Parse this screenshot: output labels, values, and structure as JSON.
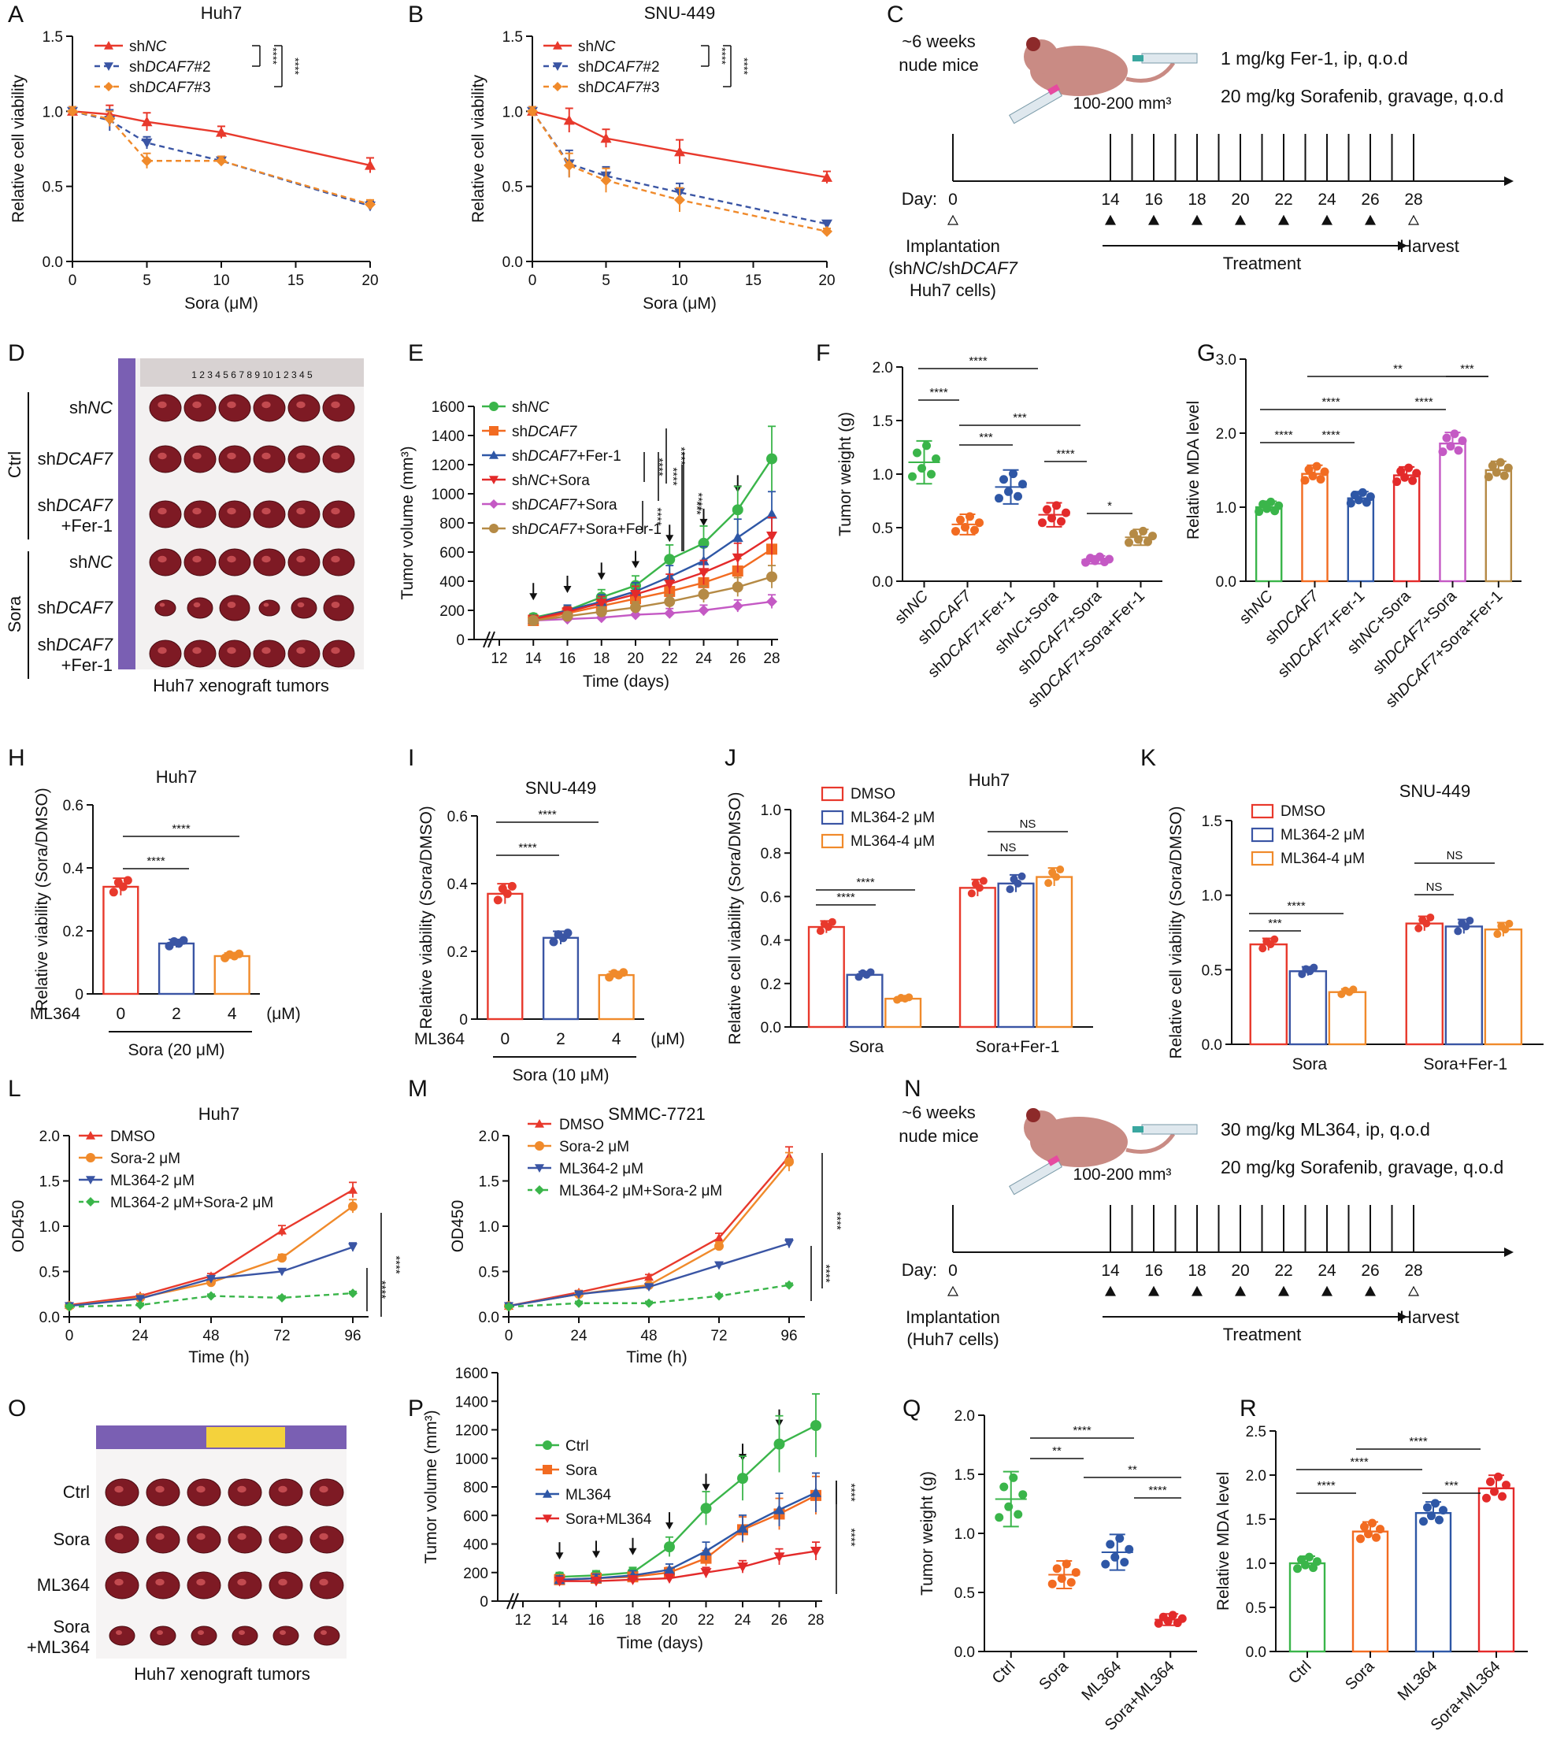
{
  "figure": {
    "panels_letters": [
      "A",
      "B",
      "C",
      "D",
      "E",
      "F",
      "G",
      "H",
      "I",
      "J",
      "K",
      "L",
      "M",
      "N",
      "O",
      "P",
      "Q",
      "R"
    ]
  },
  "chart_data": [
    {
      "id": "A",
      "type": "line",
      "title": "Huh7",
      "xlabel": "Sora (μM)",
      "ylabel": "Relative cell viability",
      "xlim": [
        0,
        20
      ],
      "ylim": [
        0,
        1.5
      ],
      "xticks": [
        0,
        5,
        10,
        15,
        20
      ],
      "yticks": [
        0,
        0.5,
        1.0,
        1.5
      ],
      "x": [
        0,
        2.5,
        5,
        10,
        20
      ],
      "series": [
        {
          "name": "shNC",
          "values": [
            1.0,
            0.98,
            0.93,
            0.86,
            0.64
          ],
          "err": [
            0.03,
            0.06,
            0.06,
            0.04,
            0.05
          ],
          "color": "#e8392c",
          "marker": "triangle-up",
          "dash": false
        },
        {
          "name": "shDCAF7#2",
          "values": [
            1.0,
            0.94,
            0.79,
            0.67,
            0.37
          ],
          "err": [
            0.03,
            0.07,
            0.04,
            0.03,
            0.03
          ],
          "color": "#3a55a4",
          "marker": "triangle-down",
          "dash": true
        },
        {
          "name": "shDCAF7#3",
          "values": [
            1.0,
            0.95,
            0.67,
            0.67,
            0.38
          ],
          "err": [
            0.03,
            0.05,
            0.05,
            0.03,
            0.03
          ],
          "color": "#f08a2b",
          "marker": "diamond",
          "dash": true
        }
      ],
      "legend": [
        "shNC",
        "shDCAF7#2",
        "shDCAF7#3"
      ],
      "annotations": [
        "****",
        "****"
      ]
    },
    {
      "id": "B",
      "type": "line",
      "title": "SNU-449",
      "xlabel": "Sora (μM)",
      "ylabel": "Relative cell viability",
      "xlim": [
        0,
        20
      ],
      "ylim": [
        0,
        1.5
      ],
      "xticks": [
        0,
        5,
        10,
        15,
        20
      ],
      "yticks": [
        0,
        0.5,
        1.0,
        1.5
      ],
      "x": [
        0,
        2.5,
        5,
        10,
        20
      ],
      "series": [
        {
          "name": "shNC",
          "values": [
            1.0,
            0.94,
            0.82,
            0.73,
            0.56
          ],
          "err": [
            0.03,
            0.08,
            0.06,
            0.08,
            0.04
          ],
          "color": "#e8392c",
          "marker": "triangle-up",
          "dash": false
        },
        {
          "name": "shDCAF7#2",
          "values": [
            1.0,
            0.65,
            0.57,
            0.46,
            0.25
          ],
          "err": [
            0.03,
            0.09,
            0.06,
            0.06,
            0.02
          ],
          "color": "#3a55a4",
          "marker": "triangle-down",
          "dash": true
        },
        {
          "name": "shDCAF7#3",
          "values": [
            1.0,
            0.64,
            0.54,
            0.41,
            0.2
          ],
          "err": [
            0.03,
            0.08,
            0.08,
            0.08,
            0.02
          ],
          "color": "#f08a2b",
          "marker": "diamond",
          "dash": true
        }
      ],
      "legend": [
        "shNC",
        "shDCAF7#2",
        "shDCAF7#3"
      ],
      "annotations": [
        "****",
        "****"
      ]
    },
    {
      "id": "E",
      "type": "line",
      "title": "",
      "xlabel": "Time (days)",
      "ylabel": "Tumor volume (mm³)",
      "xlim": [
        12,
        28
      ],
      "ylim": [
        0,
        1600
      ],
      "xticks": [
        12,
        14,
        16,
        18,
        20,
        22,
        24,
        26,
        28
      ],
      "yticks": [
        0,
        200,
        400,
        600,
        800,
        1000,
        1200,
        1400,
        1600
      ],
      "x": [
        14,
        16,
        18,
        20,
        22,
        24,
        26,
        28
      ],
      "series": [
        {
          "name": "shNC",
          "values": [
            150,
            200,
            290,
            370,
            550,
            660,
            890,
            1240
          ],
          "color": "#3ab54a"
        },
        {
          "name": "shDCAF7",
          "values": [
            130,
            180,
            230,
            280,
            330,
            390,
            470,
            620
          ],
          "color": "#f26b21"
        },
        {
          "name": "shDCAF7+Fer-1",
          "values": [
            140,
            200,
            260,
            330,
            430,
            540,
            700,
            860
          ],
          "color": "#2e57a6"
        },
        {
          "name": "shNC+Sora",
          "values": [
            140,
            190,
            250,
            310,
            380,
            460,
            560,
            710
          ],
          "color": "#e32a2a"
        },
        {
          "name": "shDCAF7+Sora",
          "values": [
            130,
            140,
            150,
            170,
            180,
            200,
            230,
            260
          ],
          "color": "#c459c4"
        },
        {
          "name": "shDCAF7+Sora+Fer-1",
          "values": [
            130,
            160,
            190,
            220,
            260,
            310,
            360,
            430
          ],
          "color": "#b58a45"
        }
      ],
      "arrow_days": [
        14,
        16,
        18,
        20,
        22,
        24,
        26
      ],
      "annotations": [
        "****",
        "****",
        "****",
        "****",
        "****",
        "***"
      ]
    },
    {
      "id": "F",
      "type": "scatter",
      "title": "",
      "ylabel": "Tumor weight (g)",
      "ylim": [
        0,
        2.0
      ],
      "yticks": [
        0,
        0.5,
        1.0,
        1.5,
        2.0
      ],
      "categories": [
        "shNC",
        "shDCAF7",
        "shDCAF7+Fer-1",
        "shNC+Sora",
        "shDCAF7+Sora",
        "shDCAF7+Sora+Fer-1"
      ],
      "values": [
        1.11,
        0.53,
        0.88,
        0.62,
        0.2,
        0.41
      ],
      "colors": [
        "#3ab54a",
        "#f26b21",
        "#2e57a6",
        "#e32a2a",
        "#c459c4",
        "#b58a45"
      ],
      "annotations": [
        "****",
        "****",
        "***",
        "***",
        "****",
        "*"
      ]
    },
    {
      "id": "G",
      "type": "bar",
      "title": "",
      "ylabel": "Relative MDA level",
      "ylim": [
        0,
        3
      ],
      "yticks": [
        0,
        1,
        2,
        3
      ],
      "categories": [
        "shNC",
        "shDCAF7",
        "shDCAF7+Fer-1",
        "shNC+Sora",
        "shDCAF7+Sora",
        "shDCAF7+Sora+Fer-1"
      ],
      "values": [
        1.0,
        1.45,
        1.12,
        1.43,
        1.86,
        1.5
      ],
      "colors": [
        "#3ab54a",
        "#f26b21",
        "#2e57a6",
        "#e32a2a",
        "#c459c4",
        "#b58a45"
      ],
      "annotations": [
        "****",
        "****",
        "****",
        "**",
        "****",
        "***"
      ]
    },
    {
      "id": "H",
      "type": "bar",
      "title": "Huh7",
      "ylabel": "Relative viability (Sora/DMSO)",
      "ylim": [
        0,
        0.6
      ],
      "yticks": [
        0,
        0.2,
        0.4,
        0.6
      ],
      "categories": [
        "0",
        "2",
        "4"
      ],
      "values": [
        0.34,
        0.16,
        0.12
      ],
      "colors": [
        "#e8392c",
        "#3a55a4",
        "#f08a2b"
      ],
      "row_label": "ML364",
      "unit": "(μM)",
      "group_label": "Sora (20 μM)",
      "annotations": [
        "****",
        "****"
      ]
    },
    {
      "id": "I",
      "type": "bar",
      "title": "SNU-449",
      "ylabel": "Relative viability (Sora/DMSO)",
      "ylim": [
        0,
        0.6
      ],
      "yticks": [
        0,
        0.2,
        0.4,
        0.6
      ],
      "categories": [
        "0",
        "2",
        "4"
      ],
      "values": [
        0.37,
        0.24,
        0.13
      ],
      "colors": [
        "#e8392c",
        "#3a55a4",
        "#f08a2b"
      ],
      "row_label": "ML364",
      "unit": "(μM)",
      "group_label": "Sora (10 μM)",
      "annotations": [
        "****",
        "****"
      ]
    },
    {
      "id": "J",
      "type": "bar",
      "title": "Huh7",
      "ylabel": "Relative cell viability (Sora/DMSO)",
      "ylim": [
        0,
        1.0
      ],
      "yticks": [
        0,
        0.2,
        0.4,
        0.6,
        0.8,
        1.0
      ],
      "categories": [
        "Sora",
        "Sora+Fer-1"
      ],
      "series": [
        {
          "name": "DMSO",
          "values": [
            0.46,
            0.64
          ],
          "color": "#e8392c"
        },
        {
          "name": "ML364-2 μM",
          "values": [
            0.24,
            0.66
          ],
          "color": "#3a55a4"
        },
        {
          "name": "ML364-4 μM",
          "values": [
            0.13,
            0.69
          ],
          "color": "#f08a2b"
        }
      ],
      "annotations": [
        "****",
        "****",
        "NS",
        "NS"
      ]
    },
    {
      "id": "K",
      "type": "bar",
      "title": "SNU-449",
      "ylabel": "Relative cell viability (Sora/DMSO)",
      "ylim": [
        0,
        1.5
      ],
      "yticks": [
        0,
        0.5,
        1.0,
        1.5
      ],
      "categories": [
        "Sora",
        "Sora+Fer-1"
      ],
      "series": [
        {
          "name": "DMSO",
          "values": [
            0.67,
            0.81
          ],
          "color": "#e8392c"
        },
        {
          "name": "ML364-2 μM",
          "values": [
            0.49,
            0.79
          ],
          "color": "#3a55a4"
        },
        {
          "name": "ML364-4 μM",
          "values": [
            0.35,
            0.77
          ],
          "color": "#f08a2b"
        }
      ],
      "annotations": [
        "***",
        "****",
        "NS",
        "NS"
      ]
    },
    {
      "id": "L",
      "type": "line",
      "title": "Huh7",
      "xlabel": "Time (h)",
      "ylabel": "OD450",
      "xlim": [
        0,
        96
      ],
      "ylim": [
        0,
        2.0
      ],
      "xticks": [
        0,
        24,
        48,
        72,
        96
      ],
      "yticks": [
        0,
        0.5,
        1.0,
        1.5,
        2.0
      ],
      "x": [
        0,
        24,
        48,
        72,
        96
      ],
      "series": [
        {
          "name": "DMSO",
          "values": [
            0.13,
            0.23,
            0.45,
            0.95,
            1.4
          ],
          "color": "#e8392c",
          "marker": "triangle-up",
          "dash": false
        },
        {
          "name": "Sora-2 μM",
          "values": [
            0.12,
            0.21,
            0.38,
            0.65,
            1.22
          ],
          "color": "#f08a2b",
          "marker": "circle",
          "dash": false
        },
        {
          "name": "ML364-2 μM",
          "values": [
            0.12,
            0.2,
            0.42,
            0.5,
            0.77
          ],
          "color": "#3a55a4",
          "marker": "triangle-down",
          "dash": false
        },
        {
          "name": "ML364-2 μM+Sora-2 μM",
          "values": [
            0.11,
            0.13,
            0.23,
            0.21,
            0.26
          ],
          "color": "#3ab54a",
          "marker": "diamond",
          "dash": true
        }
      ],
      "annotations": [
        "****",
        "****"
      ]
    },
    {
      "id": "M",
      "type": "line",
      "title": "SMMC-7721",
      "xlabel": "Time (h)",
      "ylabel": "OD450",
      "xlim": [
        0,
        96
      ],
      "ylim": [
        0,
        2.0
      ],
      "xticks": [
        0,
        24,
        48,
        72,
        96
      ],
      "yticks": [
        0,
        0.5,
        1.0,
        1.5,
        2.0
      ],
      "x": [
        0,
        24,
        48,
        72,
        96
      ],
      "series": [
        {
          "name": "DMSO",
          "values": [
            0.12,
            0.27,
            0.44,
            0.87,
            1.77
          ],
          "color": "#e8392c",
          "marker": "triangle-up",
          "dash": false
        },
        {
          "name": "Sora-2 μM",
          "values": [
            0.12,
            0.25,
            0.35,
            0.78,
            1.71
          ],
          "color": "#f08a2b",
          "marker": "circle",
          "dash": false
        },
        {
          "name": "ML364-2 μM",
          "values": [
            0.12,
            0.25,
            0.33,
            0.57,
            0.81
          ],
          "color": "#3a55a4",
          "marker": "triangle-down",
          "dash": false
        },
        {
          "name": "ML364-2 μM+Sora-2 μM",
          "values": [
            0.11,
            0.15,
            0.15,
            0.23,
            0.35
          ],
          "color": "#3ab54a",
          "marker": "diamond",
          "dash": true
        }
      ],
      "annotations": [
        "****",
        "****"
      ]
    },
    {
      "id": "P",
      "type": "line",
      "title": "",
      "xlabel": "Time (days)",
      "ylabel": "Tumor volume (mm³)",
      "xlim": [
        12,
        28
      ],
      "ylim": [
        0,
        1600
      ],
      "xticks": [
        12,
        14,
        16,
        18,
        20,
        22,
        24,
        26,
        28
      ],
      "yticks": [
        0,
        200,
        400,
        600,
        800,
        1000,
        1200,
        1400,
        1600
      ],
      "x": [
        14,
        16,
        18,
        20,
        22,
        24,
        26,
        28
      ],
      "series": [
        {
          "name": "Ctrl",
          "values": [
            170,
            180,
            200,
            380,
            650,
            860,
            1100,
            1230
          ],
          "color": "#3ab54a"
        },
        {
          "name": "Sora",
          "values": [
            150,
            160,
            170,
            200,
            300,
            500,
            610,
            740
          ],
          "color": "#f26b21"
        },
        {
          "name": "ML364",
          "values": [
            150,
            160,
            180,
            220,
            350,
            510,
            640,
            760
          ],
          "color": "#2e57a6"
        },
        {
          "name": "Sora+ML364",
          "values": [
            140,
            140,
            150,
            160,
            200,
            240,
            310,
            350
          ],
          "color": "#e32a2a"
        }
      ],
      "arrow_days": [
        14,
        16,
        18,
        20,
        22,
        24,
        26
      ],
      "annotations": [
        "****",
        "****"
      ]
    },
    {
      "id": "Q",
      "type": "scatter",
      "title": "",
      "ylabel": "Tumor weight (g)",
      "ylim": [
        0,
        2.0
      ],
      "yticks": [
        0,
        0.5,
        1.0,
        1.5,
        2.0
      ],
      "categories": [
        "Ctrl",
        "Sora",
        "ML364",
        "Sora+ML364"
      ],
      "values": [
        1.29,
        0.65,
        0.84,
        0.27
      ],
      "colors": [
        "#3ab54a",
        "#f26b21",
        "#2e57a6",
        "#e32a2a"
      ],
      "annotations": [
        "****",
        "**",
        "**",
        "****"
      ]
    },
    {
      "id": "R",
      "type": "bar",
      "title": "",
      "ylabel": "Relative MDA level",
      "ylim": [
        0,
        2.5
      ],
      "yticks": [
        0,
        0.5,
        1.0,
        1.5,
        2.0,
        2.5
      ],
      "categories": [
        "Ctrl",
        "Sora",
        "ML364",
        "Sora+ML364"
      ],
      "values": [
        1.0,
        1.36,
        1.57,
        1.85
      ],
      "colors": [
        "#3ab54a",
        "#f26b21",
        "#2e57a6",
        "#e32a2a"
      ],
      "annotations": [
        "****",
        "****",
        "****",
        "***"
      ]
    }
  ],
  "schematic_C": {
    "mice": "~6 weeks\nnude mice",
    "volume": "100-200 mm³",
    "drug1": "1 mg/kg Fer-1, ip, q.o.d",
    "drug2": "20 mg/kg Sorafenib, gravage, q.o.d",
    "day_label": "Day:",
    "days": [
      "0",
      "14",
      "16",
      "18",
      "20",
      "22",
      "24",
      "26",
      "28"
    ],
    "implant": "Implantation",
    "cells_line1": "(shNC/shDCAF7",
    "cells_line2": "Huh7 cells)",
    "treatment": "Treatment",
    "harvest": "Harvest"
  },
  "schematic_N": {
    "mice": "~6 weeks\nnude mice",
    "volume": "100-200 mm³",
    "drug1": "30 mg/kg ML364, ip, q.o.d",
    "drug2": "20 mg/kg Sorafenib, gravage, q.o.d",
    "day_label": "Day:",
    "days": [
      "0",
      "14",
      "16",
      "18",
      "20",
      "22",
      "24",
      "26",
      "28"
    ],
    "implant": "Implantation",
    "cells_line1": "(Huh7 cells)",
    "treatment": "Treatment",
    "harvest": "Harvest"
  },
  "photo_D": {
    "rows": [
      "shNC",
      "shDCAF7",
      "shDCAF7\n+Fer-1",
      "shNC",
      "shDCAF7",
      "shDCAF7\n+Fer-1"
    ],
    "groups": [
      "Ctrl",
      "Sora"
    ],
    "caption": "Huh7 xenograft tumors",
    "ruler": "1 2 3 4 5 6 7 8 9 10 1 2 3 4 5"
  },
  "photo_O": {
    "rows": [
      "Ctrl",
      "Sora",
      "ML364",
      "Sora\n+ML364"
    ],
    "caption": "Huh7 xenograft tumors"
  }
}
